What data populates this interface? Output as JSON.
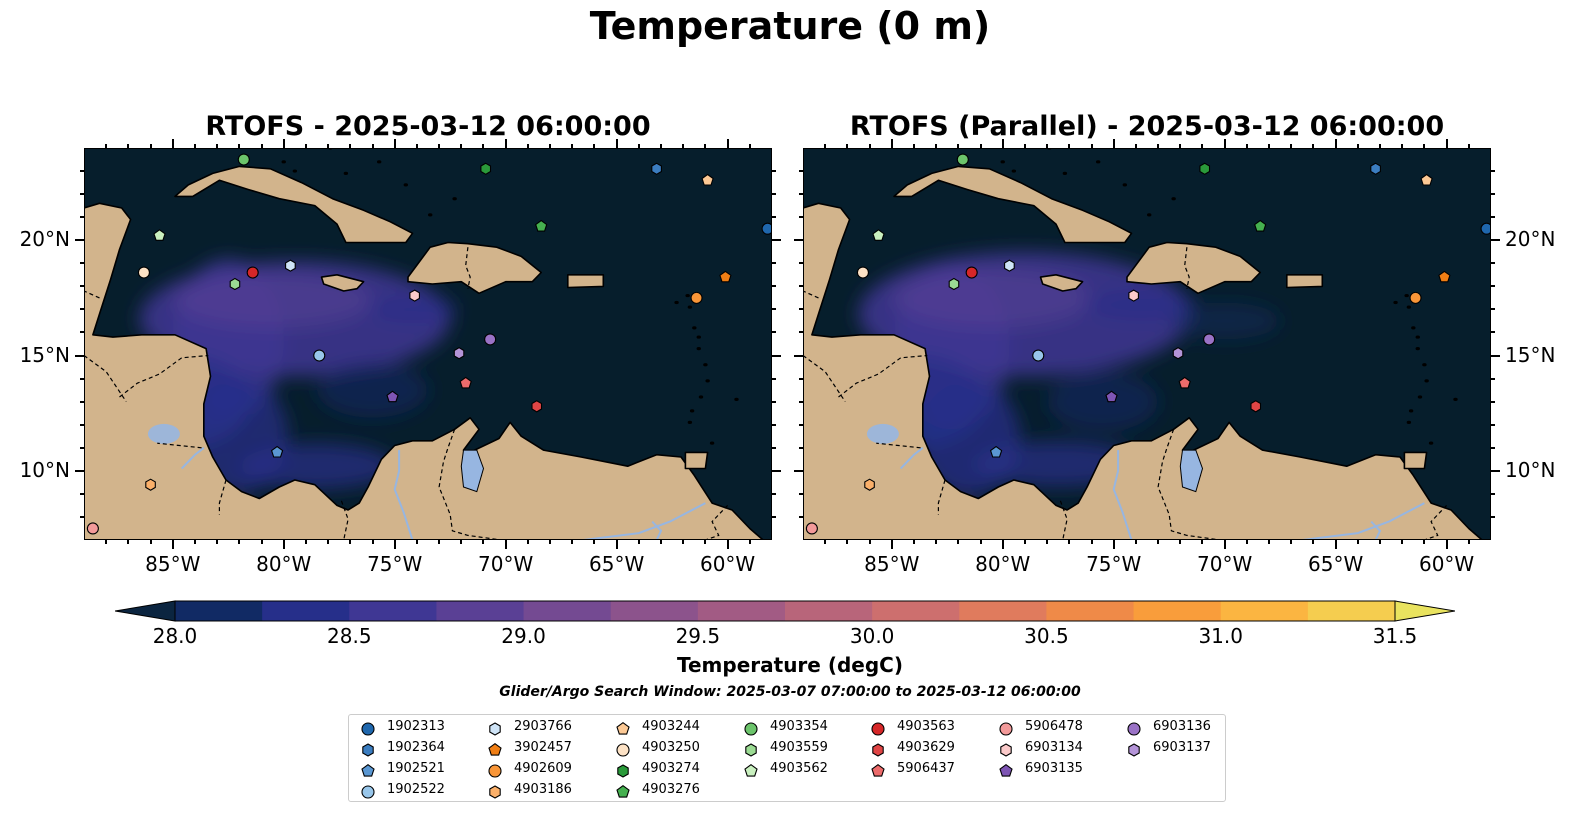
{
  "title": "Temperature (0 m)",
  "panels": [
    {
      "title": "RTOFS - 2025-03-12 06:00:00"
    },
    {
      "title": "RTOFS (Parallel) - 2025-03-12 06:00:00"
    }
  ],
  "axes": {
    "lon_ticks": [
      "85°W",
      "80°W",
      "75°W",
      "70°W",
      "65°W",
      "60°W"
    ],
    "lat_ticks": [
      "20°N",
      "15°N",
      "10°N"
    ],
    "lon_range": [
      -89,
      -58
    ],
    "lat_range": [
      7,
      24
    ]
  },
  "colorbar": {
    "label": "Temperature (degC)",
    "ticks": [
      "28.0",
      "28.5",
      "29.0",
      "29.5",
      "30.0",
      "30.5",
      "31.0",
      "31.5"
    ],
    "range": [
      28.0,
      31.5
    ],
    "extend": "both",
    "colormap": [
      "#0b2540",
      "#112a64",
      "#262f8a",
      "#3f3794",
      "#5a4095",
      "#744a92",
      "#8c538c",
      "#a25b84",
      "#b8657a",
      "#cd6f6e",
      "#e07b5d",
      "#ef8a48",
      "#f99d3b",
      "#fbb541",
      "#f5cd4f",
      "#e9e35f"
    ]
  },
  "search_window": "Glider/Argo Search Window: 2025-03-07 07:00:00 to 2025-03-12 06:00:00",
  "colors": {
    "ocean": "#061e2c",
    "land": "#d2b48c",
    "lakes_rivers": "#97b6e1"
  },
  "floats": [
    {
      "id": "1902313",
      "marker": "circle",
      "color": "#1f67ad",
      "lon": -58.2,
      "lat": 20.5
    },
    {
      "id": "1902364",
      "marker": "hexagon",
      "color": "#3b7dc0",
      "lon": -63.2,
      "lat": 23.1
    },
    {
      "id": "1902521",
      "marker": "pentagon",
      "color": "#5a97d2",
      "lon": -80.3,
      "lat": 10.8
    },
    {
      "id": "1902522",
      "marker": "circle",
      "color": "#98c6ea",
      "lon": -78.4,
      "lat": 15.0
    },
    {
      "id": "2903766",
      "marker": "hexagon",
      "color": "#cfe4f7",
      "lon": -79.7,
      "lat": 18.9
    },
    {
      "id": "3902457",
      "marker": "pentagon",
      "color": "#f07e14",
      "lon": -60.1,
      "lat": 18.4
    },
    {
      "id": "4902609",
      "marker": "circle",
      "color": "#f99638",
      "lon": -61.4,
      "lat": 17.5
    },
    {
      "id": "4903186",
      "marker": "hexagon",
      "color": "#fbb06a",
      "lon": -86.0,
      "lat": 9.4
    },
    {
      "id": "4903244",
      "marker": "pentagon",
      "color": "#fcc995",
      "lon": -60.9,
      "lat": 22.6
    },
    {
      "id": "4903250",
      "marker": "circle",
      "color": "#fde2c5",
      "lon": -86.3,
      "lat": 18.6
    },
    {
      "id": "4903274",
      "marker": "hexagon",
      "color": "#2a9a3a",
      "lon": -70.9,
      "lat": 23.1
    },
    {
      "id": "4903276",
      "marker": "pentagon",
      "color": "#45b04f",
      "lon": -68.4,
      "lat": 20.6
    },
    {
      "id": "4903354",
      "marker": "circle",
      "color": "#6cc46b",
      "lon": -81.8,
      "lat": 23.5
    },
    {
      "id": "4903559",
      "marker": "hexagon",
      "color": "#9bdb93",
      "lon": -82.2,
      "lat": 18.1
    },
    {
      "id": "4903562",
      "marker": "pentagon",
      "color": "#c9f0bf",
      "lon": -85.6,
      "lat": 20.2
    },
    {
      "id": "4903563",
      "marker": "circle",
      "color": "#d62728",
      "lon": -81.4,
      "lat": 18.6
    },
    {
      "id": "4903629",
      "marker": "hexagon",
      "color": "#e04545",
      "lon": -68.6,
      "lat": 12.8
    },
    {
      "id": "5906437",
      "marker": "pentagon",
      "color": "#ec6b6b",
      "lon": -71.8,
      "lat": 13.8
    },
    {
      "id": "5906478",
      "marker": "circle",
      "color": "#f39a9a",
      "lon": -88.6,
      "lat": 7.5
    },
    {
      "id": "6903134",
      "marker": "hexagon",
      "color": "#fbcaca",
      "lon": -74.1,
      "lat": 17.6
    },
    {
      "id": "6903135",
      "marker": "pentagon",
      "color": "#7e55b4",
      "lon": -75.1,
      "lat": 13.2
    },
    {
      "id": "6903136",
      "marker": "circle",
      "color": "#9a72c6",
      "lon": -70.7,
      "lat": 15.7
    },
    {
      "id": "6903137",
      "marker": "hexagon",
      "color": "#b494d8",
      "lon": -72.1,
      "lat": 15.1
    }
  ]
}
